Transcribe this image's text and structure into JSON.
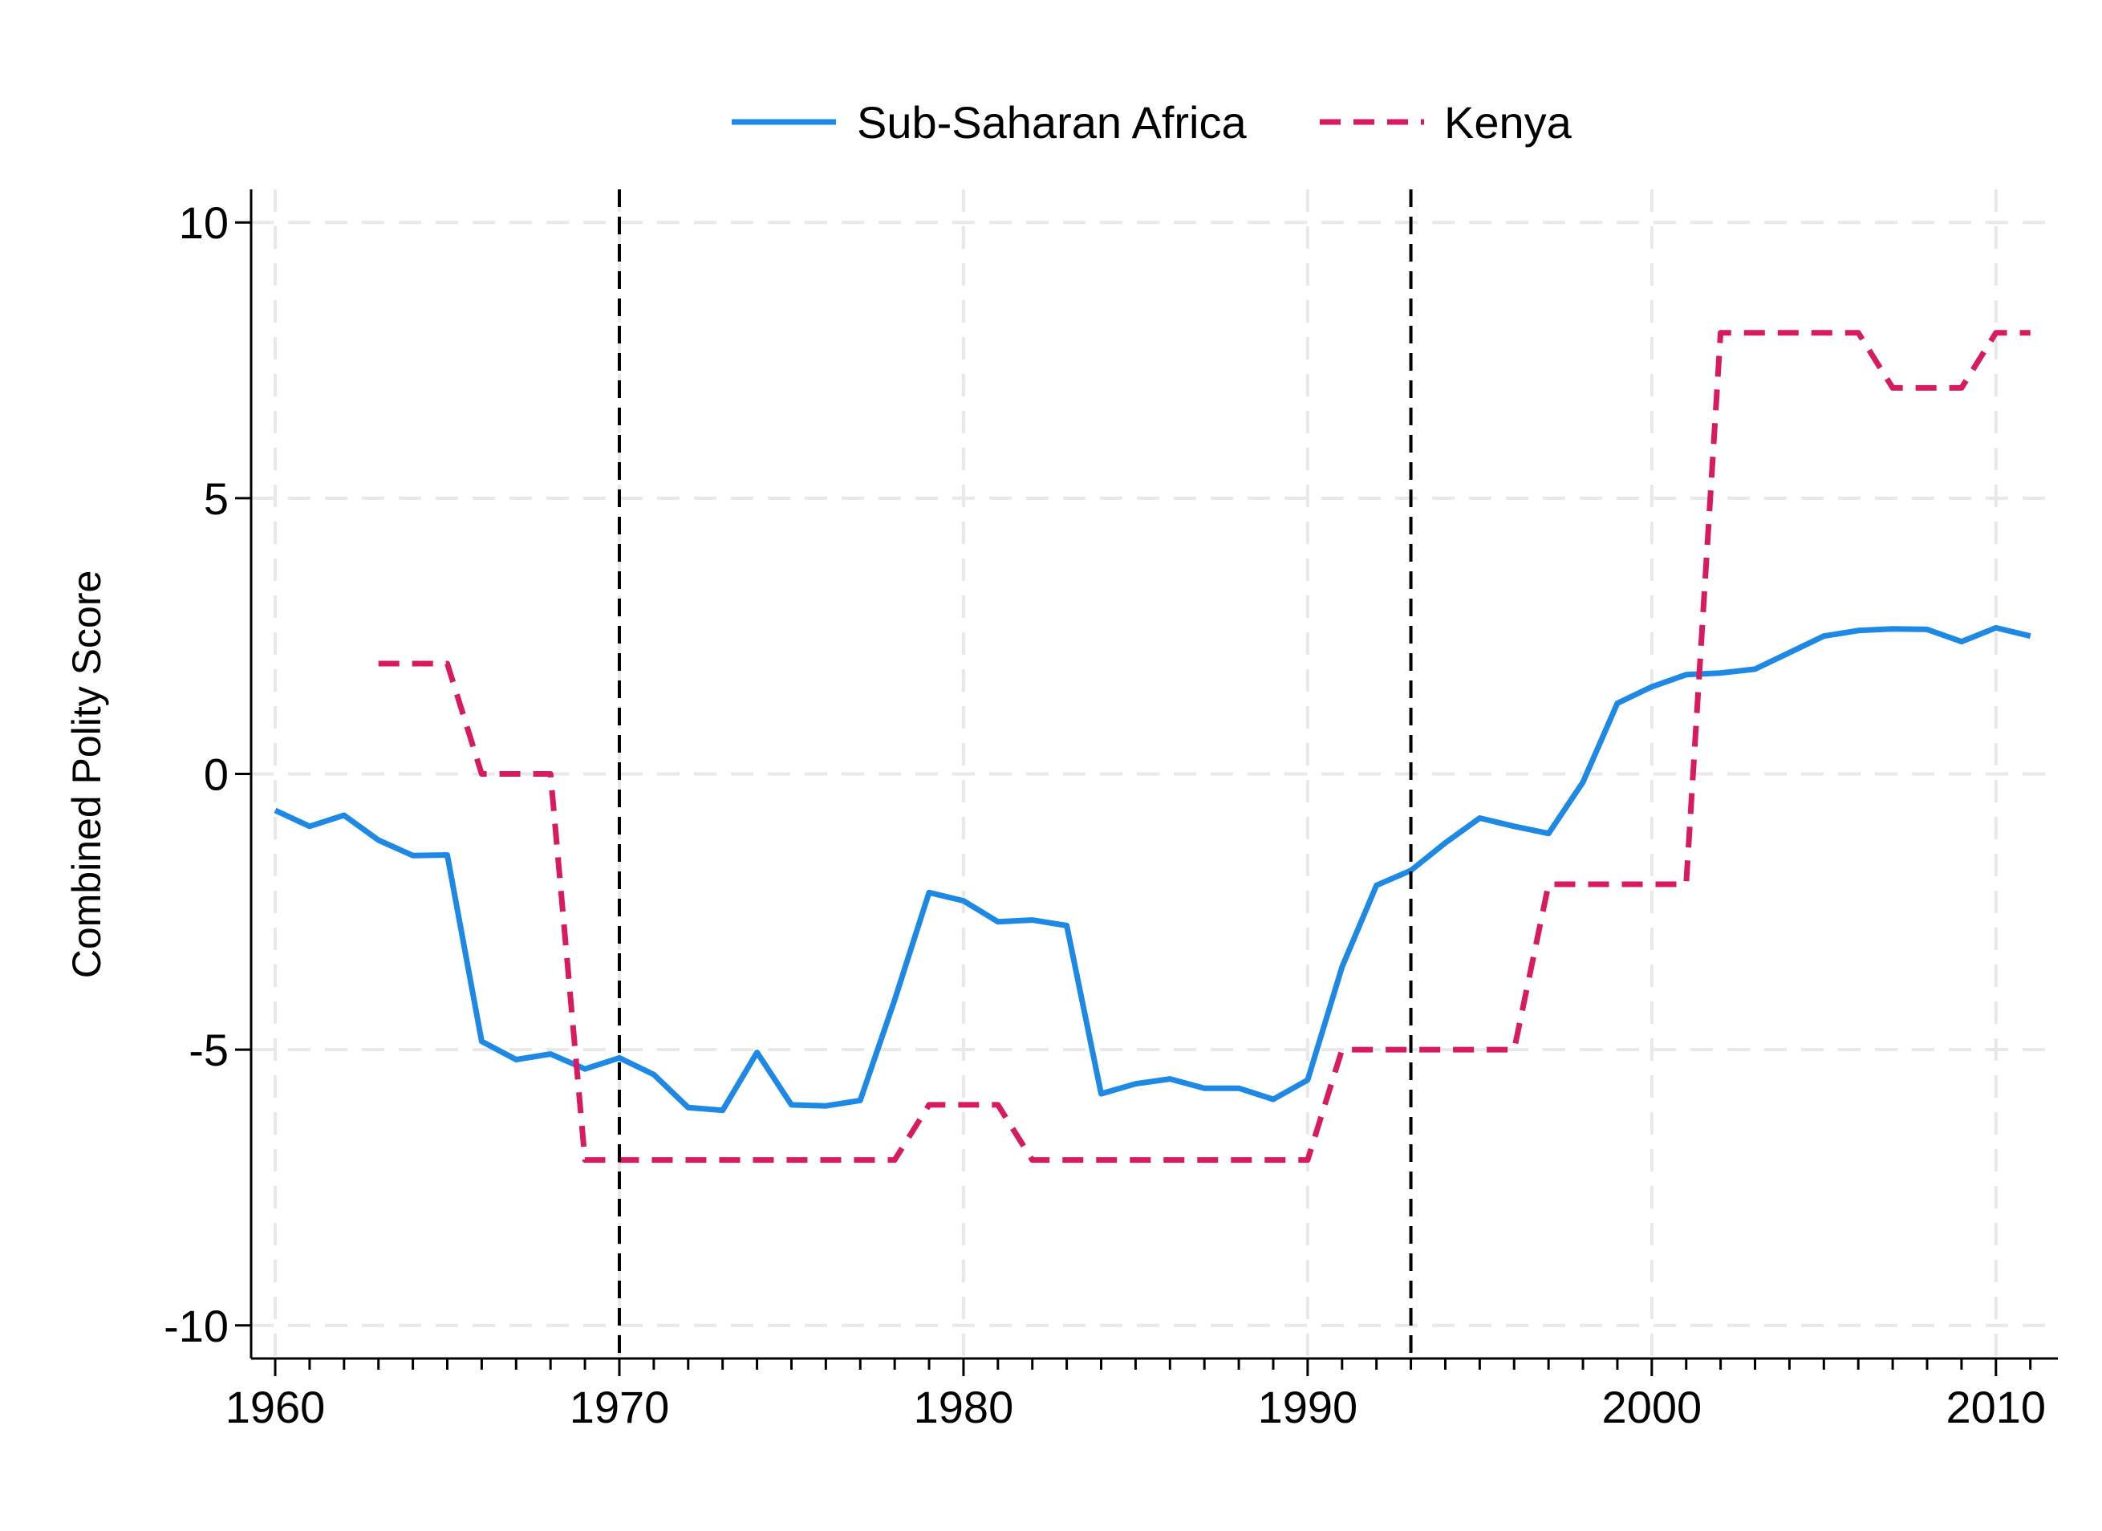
{
  "chart_data": {
    "type": "line",
    "title": "",
    "xlabel": "",
    "ylabel": "Combined Polity Score",
    "xlim": [
      1959.3,
      2011.8
    ],
    "ylim": [
      -10.6,
      10.6
    ],
    "x_ticks": [
      1960,
      1970,
      1980,
      1990,
      2000,
      2010
    ],
    "x_tick_labels": [
      "1960",
      "1970",
      "1980",
      "1990",
      "2000",
      "2010"
    ],
    "y_ticks": [
      10,
      5,
      0,
      -5,
      -10
    ],
    "y_tick_labels": [
      "10",
      "5",
      "0",
      "-5",
      "-10"
    ],
    "grid": true,
    "legend_position": "top",
    "reference_lines_x": [
      1970,
      1993
    ],
    "series": [
      {
        "name": "Sub-Saharan Africa",
        "style": "solid",
        "color": "#1e88e5",
        "x": [
          1960,
          1961,
          1962,
          1963,
          1964,
          1965,
          1966,
          1967,
          1968,
          1969,
          1970,
          1971,
          1972,
          1973,
          1974,
          1975,
          1976,
          1977,
          1978,
          1979,
          1980,
          1981,
          1982,
          1983,
          1984,
          1985,
          1986,
          1987,
          1988,
          1989,
          1990,
          1991,
          1992,
          1993,
          1994,
          1995,
          1996,
          1997,
          1998,
          1999,
          2000,
          2001,
          2002,
          2003,
          2004,
          2005,
          2006,
          2007,
          2008,
          2009,
          2010,
          2011
        ],
        "values": [
          -0.66,
          -0.95,
          -0.75,
          -1.2,
          -1.48,
          -1.47,
          -4.85,
          -5.18,
          -5.08,
          -5.35,
          -5.15,
          -5.45,
          -6.05,
          -6.1,
          -5.05,
          -6.0,
          -6.02,
          -5.92,
          -4.1,
          -2.15,
          -2.3,
          -2.68,
          -2.65,
          -2.75,
          -5.8,
          -5.62,
          -5.53,
          -5.7,
          -5.7,
          -5.9,
          -5.55,
          -3.5,
          -2.02,
          -1.75,
          -1.25,
          -0.8,
          -0.95,
          -1.08,
          -0.15,
          1.28,
          1.58,
          1.8,
          1.83,
          1.9,
          2.2,
          2.5,
          2.6,
          2.63,
          2.62,
          2.4,
          2.65,
          2.5
        ]
      },
      {
        "name": "Kenya",
        "style": "dashed",
        "color": "#d81b60",
        "x": [
          1963,
          1964,
          1965,
          1966,
          1967,
          1968,
          1969,
          1970,
          1971,
          1972,
          1973,
          1974,
          1975,
          1976,
          1977,
          1978,
          1979,
          1980,
          1981,
          1982,
          1983,
          1984,
          1985,
          1986,
          1987,
          1988,
          1989,
          1990,
          1991,
          1992,
          1993,
          1994,
          1995,
          1996,
          1997,
          1998,
          1999,
          2000,
          2001,
          2002,
          2003,
          2004,
          2005,
          2006,
          2007,
          2008,
          2009,
          2010,
          2011
        ],
        "values": [
          2,
          2,
          2,
          0,
          0,
          0,
          -7,
          -7,
          -7,
          -7,
          -7,
          -7,
          -7,
          -7,
          -7,
          -7,
          -6,
          -6,
          -6,
          -7,
          -7,
          -7,
          -7,
          -7,
          -7,
          -7,
          -7,
          -7,
          -5,
          -5,
          -5,
          -5,
          -5,
          -5,
          -2,
          -2,
          -2,
          -2,
          -2,
          8,
          8,
          8,
          8,
          8,
          7,
          7,
          7,
          8,
          8
        ]
      }
    ]
  }
}
